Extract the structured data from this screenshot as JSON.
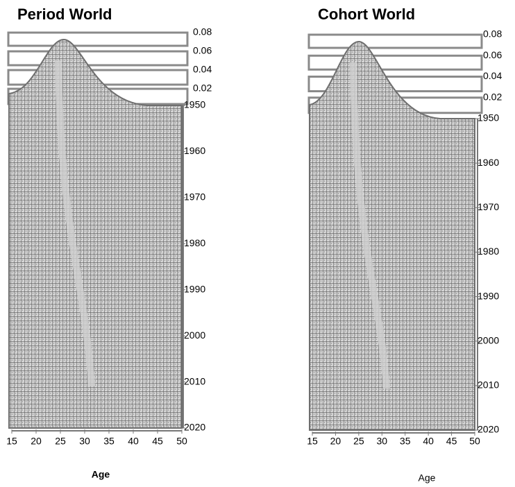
{
  "chart_data": [
    {
      "type": "surface",
      "title": "Period World",
      "x_label": "Age",
      "xlim": [
        15,
        50
      ],
      "xticks": [
        15,
        20,
        25,
        30,
        35,
        40,
        45,
        50
      ],
      "ylim": [
        1950,
        2020
      ],
      "yticks": [
        1950,
        1960,
        1970,
        1980,
        1990,
        2000,
        2010,
        2020
      ],
      "zlim": [
        0,
        0.08
      ],
      "zticks": [
        0.02,
        0.04,
        0.06,
        0.08
      ],
      "color": "#6e6e6e"
    },
    {
      "type": "surface",
      "title": "Cohort World",
      "x_label": "Age",
      "xlim": [
        15,
        50
      ],
      "xticks": [
        15,
        20,
        25,
        30,
        35,
        40,
        45,
        50
      ],
      "ylim": [
        1950,
        2020
      ],
      "yticks": [
        1950,
        1960,
        1970,
        1980,
        1990,
        2000,
        2010,
        2020
      ],
      "zlim": [
        0,
        0.08
      ],
      "zticks": [
        0.02,
        0.04,
        0.06,
        0.08
      ],
      "color": "#6e6e6e"
    }
  ]
}
